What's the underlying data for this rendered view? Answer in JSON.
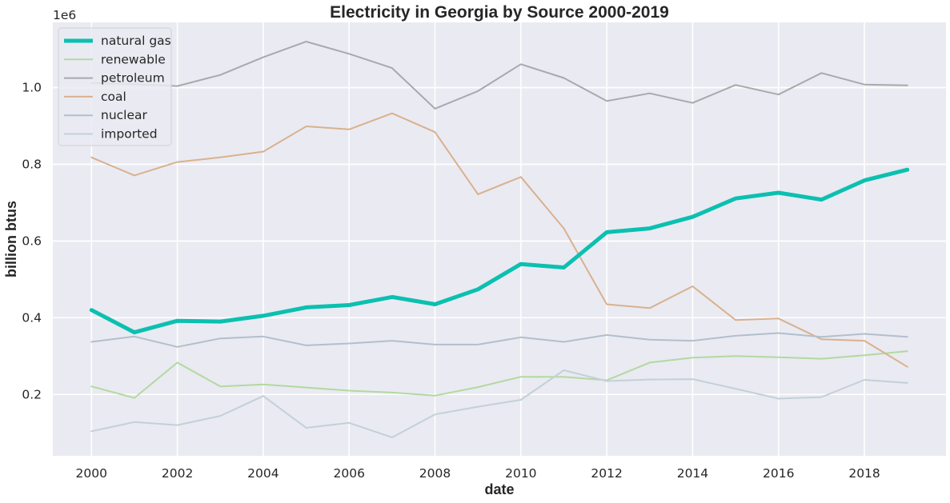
{
  "chart_data": {
    "type": "line",
    "title": "Electricity in Georgia by Source 2000-2019",
    "xlabel": "date",
    "ylabel": "billion btus",
    "y_scale_label": "1e6",
    "x": [
      2000,
      2001,
      2002,
      2003,
      2004,
      2005,
      2006,
      2007,
      2008,
      2009,
      2010,
      2011,
      2012,
      2013,
      2014,
      2015,
      2016,
      2017,
      2018,
      2019
    ],
    "xlim": [
      1999.1,
      2019.9
    ],
    "ylim": [
      40000,
      1170000
    ],
    "x_ticks": [
      2000,
      2002,
      2004,
      2006,
      2008,
      2010,
      2012,
      2014,
      2016,
      2018
    ],
    "y_ticks": [
      200000,
      400000,
      600000,
      800000,
      1000000
    ],
    "y_tick_labels": [
      "0.2",
      "0.4",
      "0.6",
      "0.8",
      "1.0"
    ],
    "grid": true,
    "legend_position": "top-left",
    "background": "#eaeaf2",
    "series": [
      {
        "name": "natural gas",
        "color": "#0bc0b0",
        "width": 5,
        "opacity": 1,
        "values": [
          420000,
          362000,
          392000,
          390000,
          405000,
          427000,
          433000,
          454000,
          435000,
          474000,
          540000,
          531000,
          623000,
          633000,
          663000,
          711000,
          726000,
          708000,
          758000,
          786000
        ]
      },
      {
        "name": "renewable",
        "color": "#b2d9a0",
        "width": 2,
        "opacity": 1,
        "values": [
          221000,
          191000,
          283000,
          221000,
          226000,
          218000,
          210000,
          205000,
          197000,
          219000,
          246000,
          246000,
          237000,
          283000,
          296000,
          300000,
          297000,
          293000,
          302000,
          313000
        ]
      },
      {
        "name": "petroleum",
        "color": "#a9a9ad",
        "width": 2,
        "opacity": 1,
        "values": [
          1012000,
          1009000,
          1004000,
          1033000,
          1079000,
          1120000,
          1088000,
          1051000,
          945000,
          991000,
          1061000,
          1025000,
          965000,
          985000,
          960000,
          1007000,
          982000,
          1038000,
          1008000,
          1006000
        ]
      },
      {
        "name": "coal",
        "color": "#d9b18e",
        "width": 2,
        "opacity": 1,
        "values": [
          818000,
          771000,
          806000,
          818000,
          833000,
          899000,
          891000,
          933000,
          884000,
          722000,
          767000,
          633000,
          435000,
          425000,
          482000,
          394000,
          398000,
          344000,
          340000,
          272000
        ]
      },
      {
        "name": "nuclear",
        "color": "#b2bfcb",
        "width": 2,
        "opacity": 1,
        "values": [
          337000,
          351000,
          324000,
          346000,
          351000,
          328000,
          333000,
          340000,
          330000,
          330000,
          349000,
          337000,
          355000,
          343000,
          340000,
          353000,
          360000,
          350000,
          358000,
          350000
        ]
      },
      {
        "name": "imported",
        "color": "#c3d0d8",
        "width": 2,
        "opacity": 1,
        "values": [
          104000,
          128000,
          120000,
          144000,
          196000,
          113000,
          126000,
          88000,
          148000,
          168000,
          186000,
          263000,
          235000,
          239000,
          240000,
          215000,
          189000,
          193000,
          238000,
          230000
        ]
      }
    ]
  }
}
